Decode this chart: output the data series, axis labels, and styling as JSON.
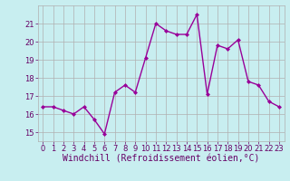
{
  "x": [
    0,
    1,
    2,
    3,
    4,
    5,
    6,
    7,
    8,
    9,
    10,
    11,
    12,
    13,
    14,
    15,
    16,
    17,
    18,
    19,
    20,
    21,
    22,
    23
  ],
  "y": [
    16.4,
    16.4,
    16.2,
    16.0,
    16.4,
    15.7,
    14.9,
    17.2,
    17.6,
    17.2,
    19.1,
    21.0,
    20.6,
    20.4,
    20.4,
    21.5,
    17.1,
    19.8,
    19.6,
    20.1,
    17.8,
    17.6,
    16.7,
    16.4
  ],
  "line_color": "#990099",
  "marker": "D",
  "marker_size": 2.0,
  "xlabel": "Windchill (Refroidissement éolien,°C)",
  "ylim": [
    14.5,
    22.0
  ],
  "xlim": [
    -0.5,
    23.5
  ],
  "yticks": [
    15,
    16,
    17,
    18,
    19,
    20,
    21
  ],
  "xticks": [
    0,
    1,
    2,
    3,
    4,
    5,
    6,
    7,
    8,
    9,
    10,
    11,
    12,
    13,
    14,
    15,
    16,
    17,
    18,
    19,
    20,
    21,
    22,
    23
  ],
  "bg_color": "#c8eef0",
  "grid_color": "#b0b0b0",
  "font_color": "#660066",
  "tick_fontsize": 6.0,
  "xlabel_fontsize": 7.0,
  "linewidth": 1.0
}
